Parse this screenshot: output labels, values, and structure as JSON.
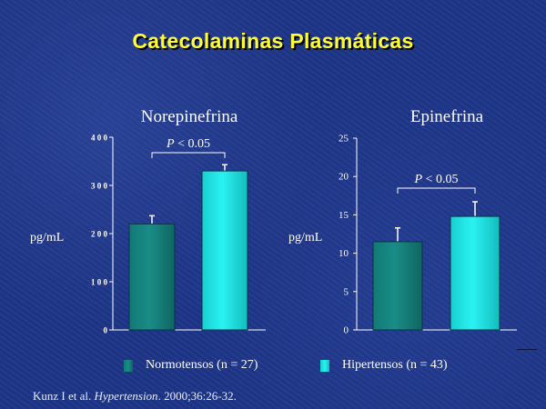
{
  "slide_title": "Catecolaminas Plasmáticas",
  "colors": {
    "background": "#1d3487",
    "title": "#ffff33",
    "normotensos": "#1a8c86",
    "hipertensos": "#1fe8e8",
    "axis": "#ffffff"
  },
  "chart_data": [
    {
      "type": "bar",
      "title": "Norepinefrina",
      "ylabel": "pg/mL",
      "ylim": [
        0,
        400
      ],
      "yticks": [
        0,
        100,
        200,
        300,
        400
      ],
      "ytick_labels": [
        "0",
        "1 0 0",
        "2 0 0",
        "3 0 0",
        "4 0 0"
      ],
      "categories": [
        "Normotensos (n = 27)",
        "Hipertensos (n = 43)"
      ],
      "values": [
        220,
        330
      ],
      "errors": [
        17,
        13
      ],
      "significance": "P < 0.05",
      "grid": false
    },
    {
      "type": "bar",
      "title": "Epinefrina",
      "ylabel": "pg/mL",
      "ylim": [
        0,
        25
      ],
      "yticks": [
        0,
        5,
        10,
        15,
        20,
        25
      ],
      "ytick_labels": [
        "0",
        "5",
        "10",
        "15",
        "20",
        "25"
      ],
      "categories": [
        "Normotensos (n = 27)",
        "Hipertensos (n = 43)"
      ],
      "values": [
        11.5,
        14.8
      ],
      "errors": [
        1.8,
        1.9
      ],
      "significance": "P < 0.05",
      "grid": false
    }
  ],
  "legend": [
    {
      "label": "Normotensos (n = 27)",
      "color": "#1a8c86"
    },
    {
      "label": "Hipertensos (n = 43)",
      "color": "#1fe8e8"
    }
  ],
  "citation": {
    "authors": "Kunz I et al.",
    "journal": "Hypertension",
    "details": ". 2000;36:26-32."
  }
}
